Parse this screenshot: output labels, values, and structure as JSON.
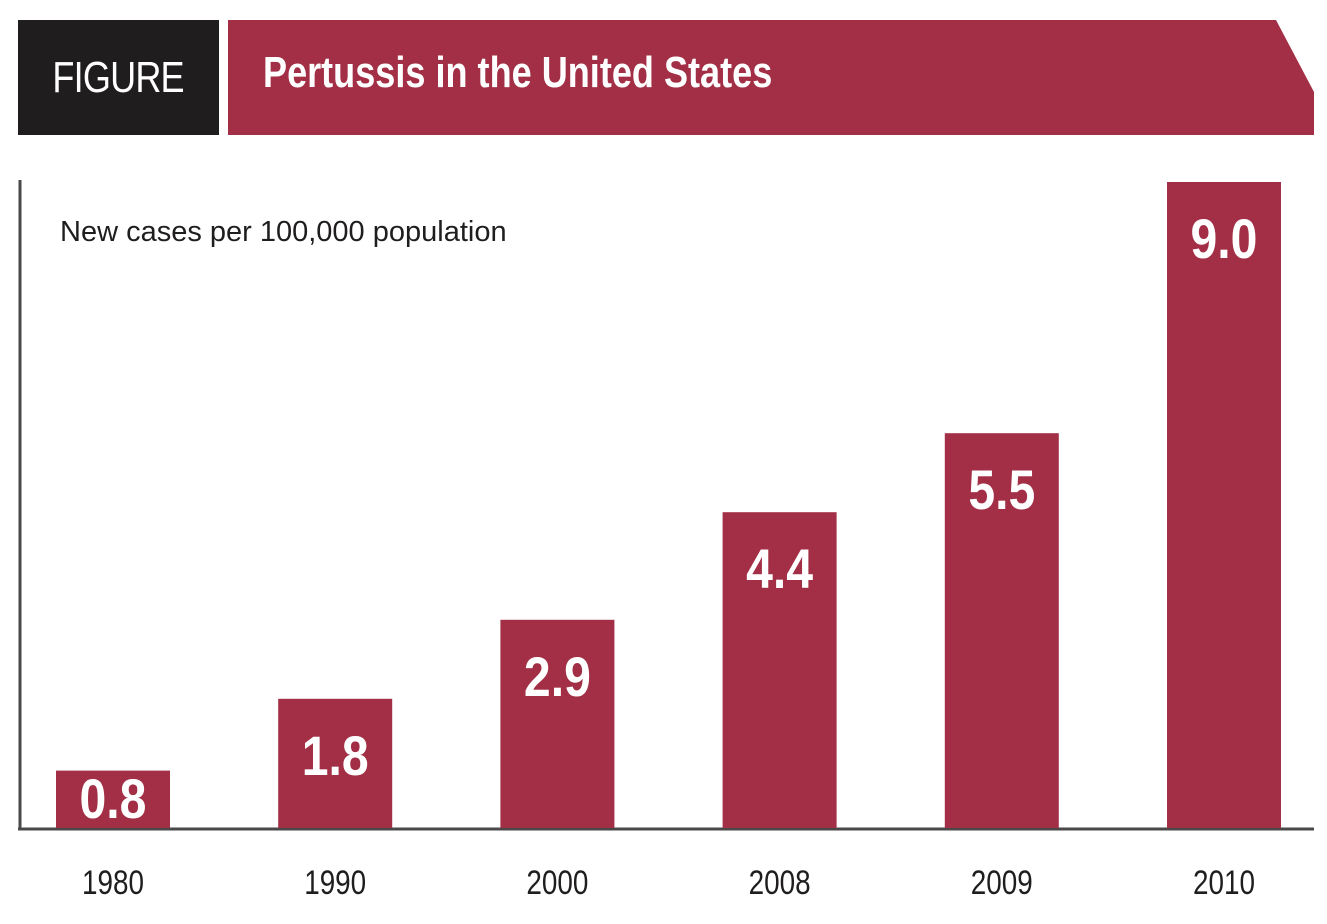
{
  "header": {
    "tag": "FIGURE",
    "title": "Pertussis in the United States"
  },
  "colors": {
    "bar": "#a22f45",
    "tag_bg": "#1f1d1e",
    "axis": "#4a4849"
  },
  "chart_data": {
    "type": "bar",
    "title": "Pertussis in the United States",
    "ylabel": "New cases per 100,000 population",
    "xlabel": "",
    "categories": [
      "1980",
      "1990",
      "2000",
      "2008",
      "2009",
      "2010"
    ],
    "values": [
      0.8,
      1.8,
      2.9,
      4.4,
      5.5,
      9.0
    ],
    "value_labels": [
      "0.8",
      "1.8",
      "2.9",
      "4.4",
      "5.5",
      "9.0"
    ],
    "ylim": [
      0,
      9.0
    ],
    "grid": false,
    "legend": "none"
  }
}
